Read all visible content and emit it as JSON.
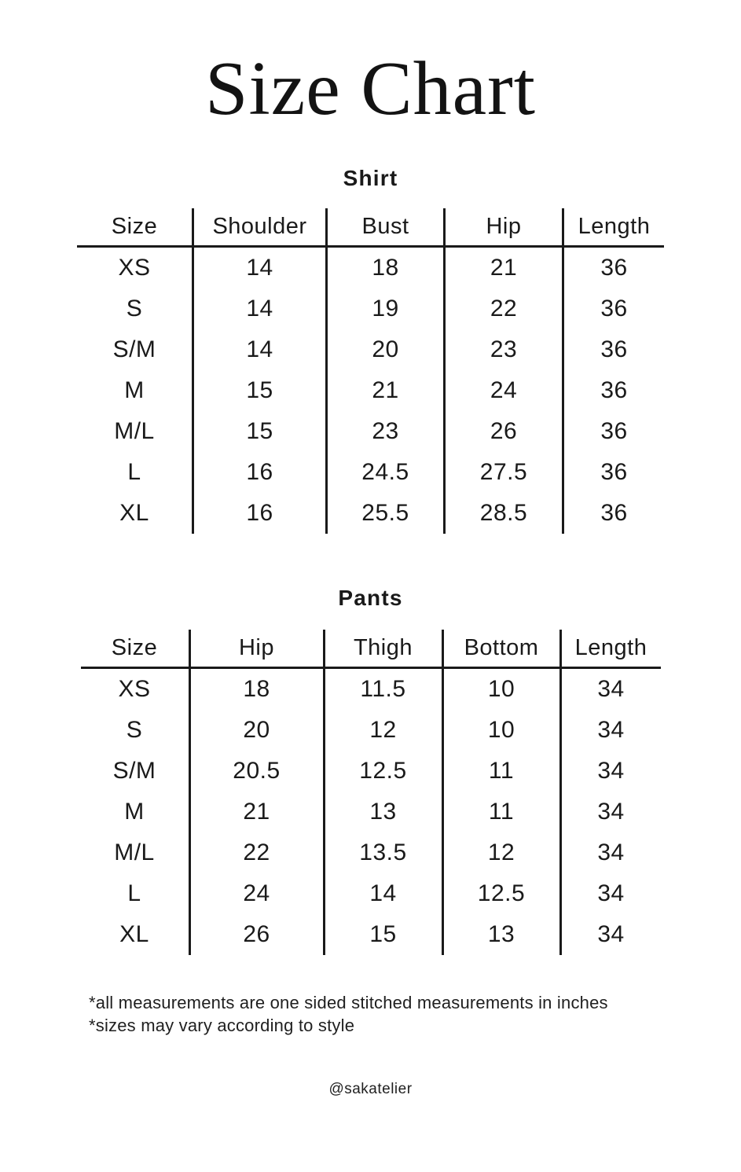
{
  "page": {
    "title": "Size Chart",
    "footnotes": [
      "*all measurements are one sided stitched measurements in inches",
      "*sizes may vary according to style"
    ],
    "handle": "@sakatelier"
  },
  "colors": {
    "background": "#ffffff",
    "text": "#131313",
    "line": "#1a1a1a"
  },
  "shirt": {
    "heading": "Shirt",
    "columns": [
      "Size",
      "Shoulder",
      "Bust",
      "Hip",
      "Length"
    ],
    "rows": [
      [
        "XS",
        "14",
        "18",
        "21",
        "36"
      ],
      [
        "S",
        "14",
        "19",
        "22",
        "36"
      ],
      [
        "S/M",
        "14",
        "20",
        "23",
        "36"
      ],
      [
        "M",
        "15",
        "21",
        "24",
        "36"
      ],
      [
        "M/L",
        "15",
        "23",
        "26",
        "36"
      ],
      [
        "L",
        "16",
        "24.5",
        "27.5",
        "36"
      ],
      [
        "XL",
        "16",
        "25.5",
        "28.5",
        "36"
      ]
    ]
  },
  "pants": {
    "heading": "Pants",
    "columns": [
      "Size",
      "Hip",
      "Thigh",
      "Bottom",
      "Length"
    ],
    "rows": [
      [
        "XS",
        "18",
        "11.5",
        "10",
        "34"
      ],
      [
        "S",
        "20",
        "12",
        "10",
        "34"
      ],
      [
        "S/M",
        "20.5",
        "12.5",
        "11",
        "34"
      ],
      [
        "M",
        "21",
        "13",
        "11",
        "34"
      ],
      [
        "M/L",
        "22",
        "13.5",
        "12",
        "34"
      ],
      [
        "L",
        "24",
        "14",
        "12.5",
        "34"
      ],
      [
        "XL",
        "26",
        "15",
        "13",
        "34"
      ]
    ]
  },
  "units": "inches"
}
